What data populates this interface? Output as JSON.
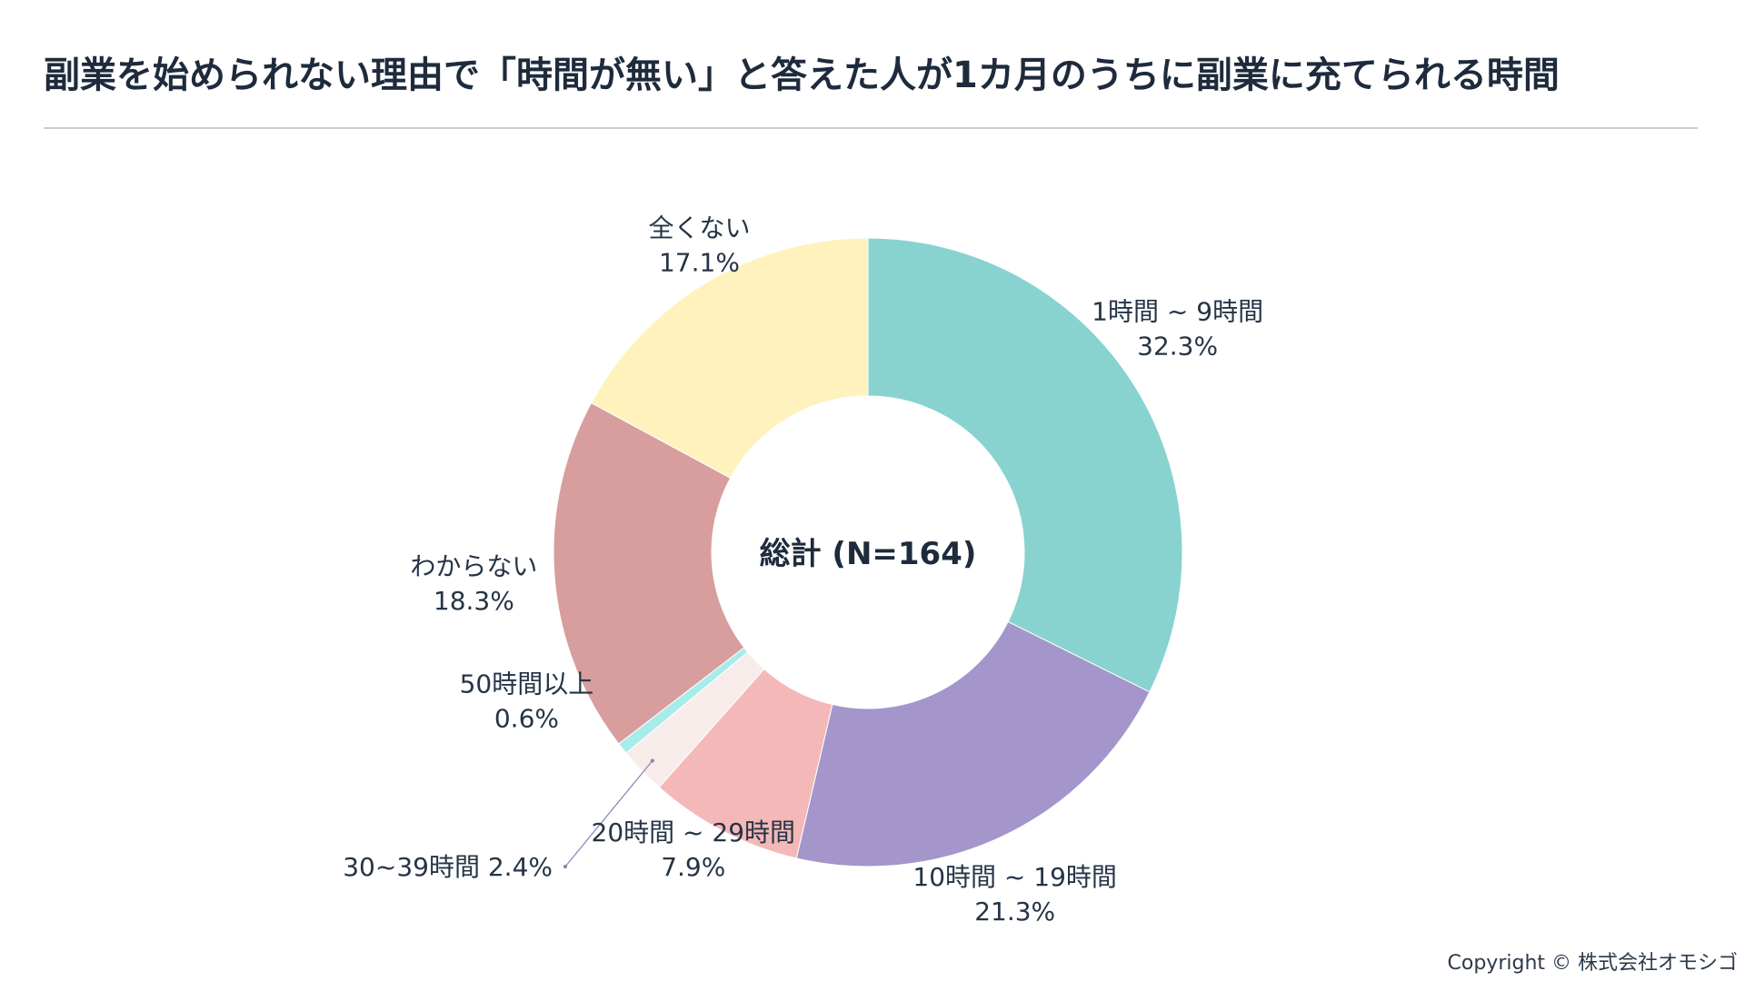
{
  "title": "副業を始められない理由で「時間が無い」と答えた人が1カ月のうちに副業に充てられる時間",
  "copyright": "Copyright © 株式会社オモシゴ",
  "chart_data": {
    "type": "pie",
    "center_label": "総計 (N=164)",
    "slices": [
      {
        "name": "1時間 ~ 9時間",
        "value": 32.3,
        "label": "32.3%",
        "color": "#88d3d0"
      },
      {
        "name": "10時間 ~ 19時間",
        "value": 21.3,
        "label": "21.3%",
        "color": "#a495cb"
      },
      {
        "name": "20時間 ~ 29時間",
        "value": 7.9,
        "label": "7.9%",
        "color": "#f4b8b8"
      },
      {
        "name": "30~39時間",
        "value": 2.4,
        "label": "2.4%",
        "color": "#f8eceb"
      },
      {
        "name": "50時間以上",
        "value": 0.6,
        "label": "0.6%",
        "color": "#a8ecea"
      },
      {
        "name": "わからない",
        "value": 18.3,
        "label": "18.3%",
        "color": "#d79e9d"
      },
      {
        "name": "全くない",
        "value": 17.1,
        "label": "17.1%",
        "color": "#fff2bd"
      }
    ]
  }
}
